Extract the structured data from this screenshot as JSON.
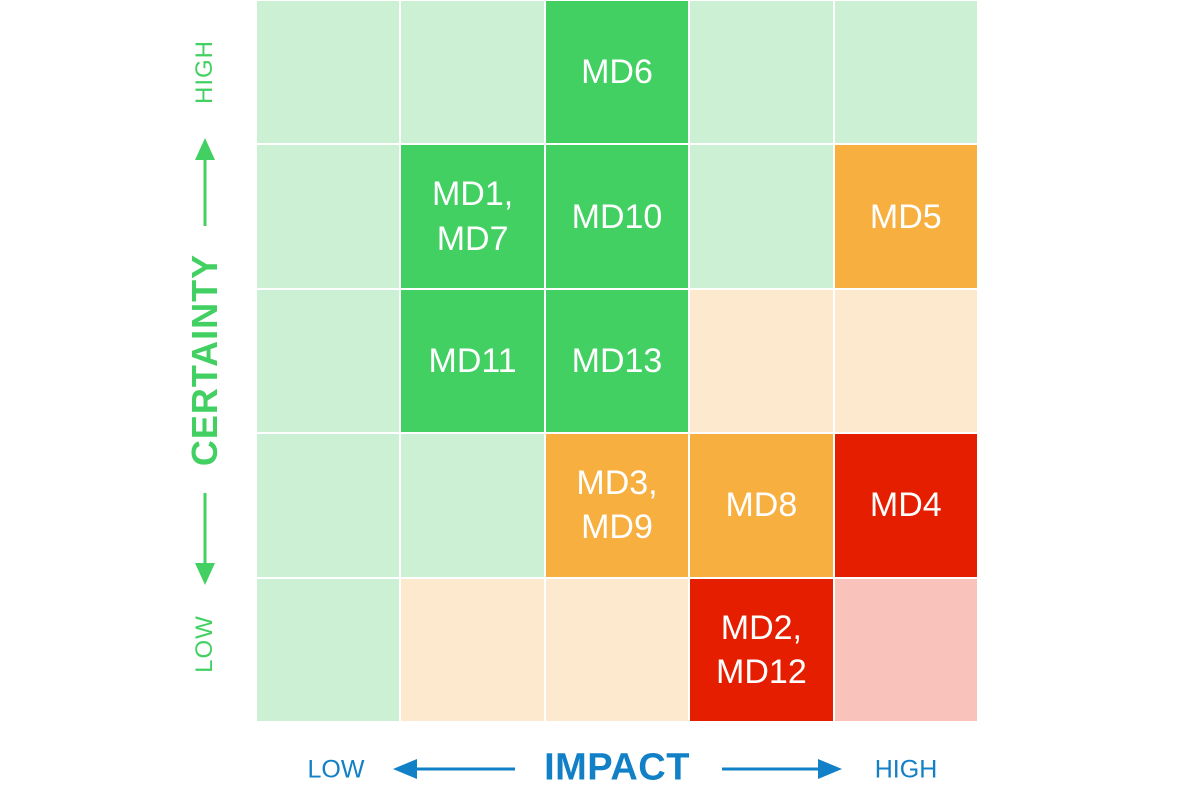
{
  "matrix": {
    "rows": [
      [
        {
          "label": "",
          "tone": "lightgreen"
        },
        {
          "label": "",
          "tone": "lightgreen"
        },
        {
          "label": "MD6",
          "tone": "green"
        },
        {
          "label": "",
          "tone": "lightgreen"
        },
        {
          "label": "",
          "tone": "lightgreen"
        }
      ],
      [
        {
          "label": "",
          "tone": "lightgreen"
        },
        {
          "label": "MD1,\nMD7",
          "tone": "green"
        },
        {
          "label": "MD10",
          "tone": "green"
        },
        {
          "label": "",
          "tone": "lightgreen"
        },
        {
          "label": "MD5",
          "tone": "orange"
        }
      ],
      [
        {
          "label": "",
          "tone": "lightgreen"
        },
        {
          "label": "MD11",
          "tone": "green"
        },
        {
          "label": "MD13",
          "tone": "green"
        },
        {
          "label": "",
          "tone": "lightorange"
        },
        {
          "label": "",
          "tone": "lightorange"
        }
      ],
      [
        {
          "label": "",
          "tone": "lightgreen"
        },
        {
          "label": "",
          "tone": "lightgreen"
        },
        {
          "label": "MD3,\nMD9",
          "tone": "orange"
        },
        {
          "label": "MD8",
          "tone": "orange"
        },
        {
          "label": "MD4",
          "tone": "red"
        }
      ],
      [
        {
          "label": "",
          "tone": "lightgreen"
        },
        {
          "label": "",
          "tone": "lightorange"
        },
        {
          "label": "",
          "tone": "lightorange"
        },
        {
          "label": "MD2,\nMD12",
          "tone": "red"
        },
        {
          "label": "",
          "tone": "lightred"
        }
      ]
    ]
  },
  "y_axis": {
    "title": "CERTAINTY",
    "high": "HIGH",
    "low": "LOW",
    "color": "#43d063"
  },
  "x_axis": {
    "title": "IMPACT",
    "low": "LOW",
    "high": "HIGH",
    "color": "#1180c6"
  },
  "colors": {
    "lightgreen": "#ccf0d4",
    "green": "#43d063",
    "lightorange": "#fde9cd",
    "orange": "#f7af40",
    "red": "#e61e00",
    "lightred": "#f9c3bc"
  }
}
